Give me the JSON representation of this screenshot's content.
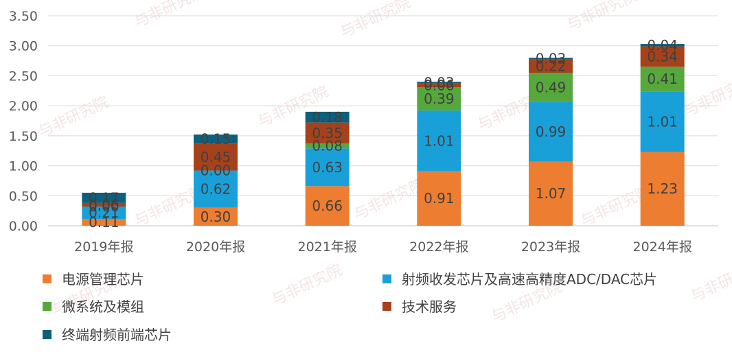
{
  "chart_data": {
    "type": "bar",
    "stacked": true,
    "categories": [
      "2019年报",
      "2020年报",
      "2021年报",
      "2022年报",
      "2023年报",
      "2024年报"
    ],
    "series": [
      {
        "name": "电源管理芯片",
        "color": "#ED7D31",
        "values": [
          0.11,
          0.3,
          0.66,
          0.91,
          1.07,
          1.23
        ]
      },
      {
        "name": "射频收发芯片及高速高精度ADC/DAC芯片",
        "color": "#1AA0D8",
        "values": [
          0.21,
          0.62,
          0.63,
          1.01,
          0.99,
          1.01
        ]
      },
      {
        "name": "微系统及模组",
        "color": "#56A83C",
        "values": [
          0.0,
          0.0,
          0.08,
          0.39,
          0.49,
          0.41
        ]
      },
      {
        "name": "技术服务",
        "color": "#A5421B",
        "values": [
          0.06,
          0.45,
          0.35,
          0.06,
          0.22,
          0.34
        ]
      },
      {
        "name": "终端射频前端芯片",
        "color": "#0E607C",
        "values": [
          0.17,
          0.15,
          0.18,
          0.03,
          0.03,
          0.04
        ]
      }
    ],
    "data_labels": [
      [
        "0.11",
        "0.30",
        "0.66",
        "0.91",
        "1.07",
        "1.23"
      ],
      [
        "0.21",
        "0.62",
        "0.63",
        "1.01",
        "0.99",
        "1.01"
      ],
      [
        "0.00",
        "0.00",
        "0.08",
        "0.39",
        "0.49",
        "0.41"
      ],
      [
        "0.06",
        "0.45",
        "0.35",
        "0.06",
        "0.22",
        "0.34"
      ],
      [
        "0.17",
        "0.15",
        "0.18",
        "0.03",
        "0.03",
        "0.04"
      ]
    ],
    "yticks": [
      "0.00",
      "0.50",
      "1.00",
      "1.50",
      "2.00",
      "2.50",
      "3.00",
      "3.50"
    ],
    "ylim": [
      0,
      3.5
    ],
    "grid": true,
    "legend_position": "bottom",
    "title": "",
    "xlabel": "",
    "ylabel": ""
  },
  "watermark": "与非研究院"
}
